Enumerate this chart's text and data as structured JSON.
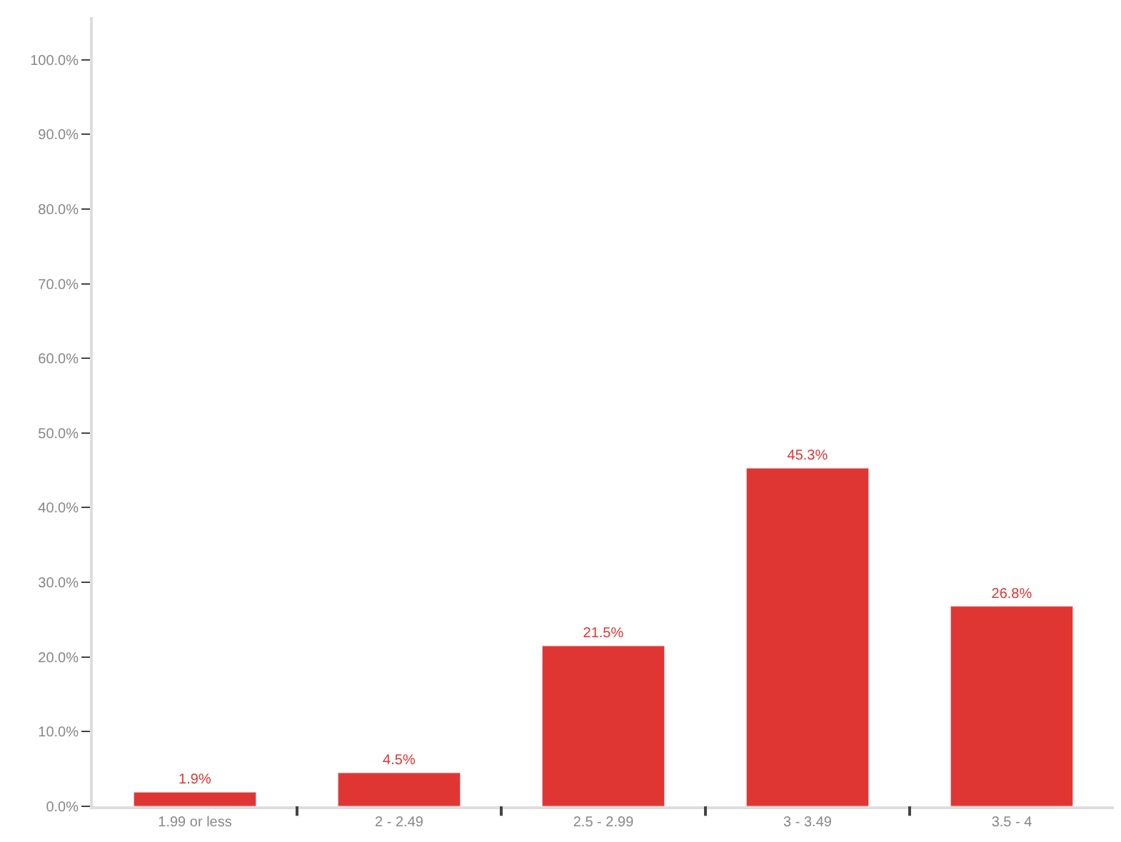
{
  "chart_data": {
    "type": "bar",
    "categories": [
      "1.99 or less",
      "2 - 2.49",
      "2.5 - 2.99",
      "3 - 3.49",
      "3.5 - 4"
    ],
    "values": [
      1.9,
      4.5,
      21.5,
      45.3,
      26.8
    ],
    "value_labels": [
      "1.9%",
      "4.5%",
      "21.5%",
      "45.3%",
      "26.8%"
    ],
    "color": "#e03633",
    "ylim": [
      0,
      105.7
    ],
    "yticks": [
      {
        "value": 0,
        "label": "0.0%"
      },
      {
        "value": 10,
        "label": "10.0%"
      },
      {
        "value": 20,
        "label": "20.0%"
      },
      {
        "value": 30,
        "label": "30.0%"
      },
      {
        "value": 40,
        "label": "40.0%"
      },
      {
        "value": 50,
        "label": "50.0%"
      },
      {
        "value": 60,
        "label": "60.0%"
      },
      {
        "value": 70,
        "label": "70.0%"
      },
      {
        "value": 80,
        "label": "80.0%"
      },
      {
        "value": 90,
        "label": "90.0%"
      },
      {
        "value": 100,
        "label": "100.0%"
      }
    ],
    "tick_labels": true
  }
}
